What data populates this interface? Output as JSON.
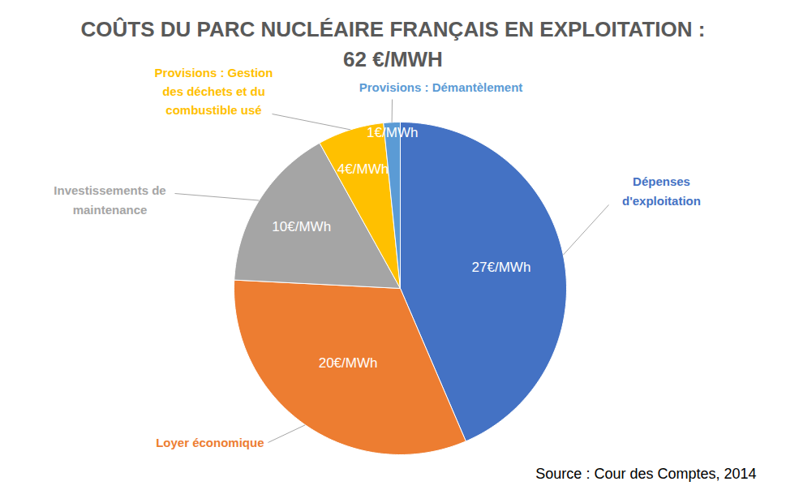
{
  "chart_data": {
    "type": "pie",
    "title": "COÛTS DU PARC NUCLÉAIRE FRANÇAIS EN EXPLOITATION :",
    "subtitle": "62 €/MWH",
    "caption": "Source : Cour des Comptes, 2014",
    "categories": [
      "Dépenses d'exploitation",
      "Loyer économique",
      "Investissements de maintenance",
      "Provisions : Gestion des déchets et du combustible usé",
      "Provisions : Démantèlement"
    ],
    "values": [
      27,
      20,
      10,
      4,
      1
    ],
    "value_labels": [
      "27€/MWh",
      "20€/MWh",
      "10€/MWh",
      "4€/MWh",
      "1€/MWh"
    ],
    "colors": [
      "#4472c4",
      "#ed7d31",
      "#a5a5a5",
      "#ffc000",
      "#5b9bd5"
    ],
    "data_labels": true
  }
}
